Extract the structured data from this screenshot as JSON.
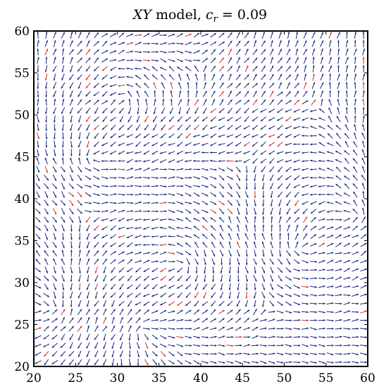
{
  "chart_data": {
    "type": "quiver",
    "title": {
      "italic": "XY",
      "plain": " model, ",
      "symbol": "c",
      "subscript": "r",
      "value": " = 0.09"
    },
    "xlabel": "",
    "ylabel": "",
    "xlim": [
      20,
      60
    ],
    "ylim": [
      20,
      60
    ],
    "xticks": [
      20,
      25,
      30,
      35,
      40,
      45,
      50,
      55,
      60
    ],
    "yticks": [
      20,
      25,
      30,
      35,
      40,
      45,
      50,
      55,
      60
    ],
    "grid": false,
    "lattice": {
      "x_start": 20.5,
      "y_start": 20.5,
      "step": 1,
      "count": 40
    },
    "colors": {
      "aligned": "#1a237e",
      "defect": "#d32f2f"
    },
    "series": [
      {
        "name": "",
        "description_color": "aligned"
      },
      {
        "name": "",
        "description_color": "defect"
      }
    ]
  }
}
